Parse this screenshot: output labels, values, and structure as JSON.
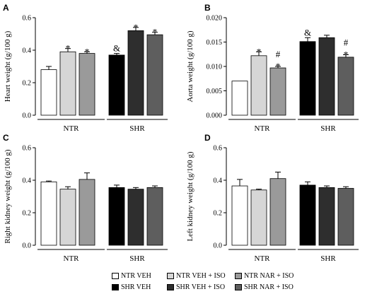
{
  "chart_data": [
    {
      "type": "bar",
      "panel": "A",
      "ylabel": "Heart weight (g/100 g)",
      "ylim": [
        0,
        0.6
      ],
      "yticks": [
        "0.0",
        "0.2",
        "0.4",
        "0.6"
      ],
      "group_labels": [
        "NTR",
        "SHR"
      ],
      "values": [
        0.28,
        0.39,
        0.38,
        0.37,
        0.52,
        0.495
      ],
      "errors": [
        0.02,
        0.02,
        0.01,
        0.01,
        0.02,
        0.015
      ],
      "annotations": [
        "",
        "*",
        "*",
        "&",
        "*",
        "*"
      ]
    },
    {
      "type": "bar",
      "panel": "B",
      "ylabel": "Aorta weight (g/100 g)",
      "ylim": [
        0,
        0.02
      ],
      "yticks": [
        "0.000",
        "0.005",
        "0.010",
        "0.015",
        "0.020"
      ],
      "group_labels": [
        "NTR",
        "SHR"
      ],
      "values": [
        0.007,
        0.0122,
        0.0097,
        0.0151,
        0.0159,
        0.0119
      ],
      "errors": [
        0.0,
        0.0008,
        0.0003,
        0.0008,
        0.0005,
        0.0005
      ],
      "annotations": [
        "",
        "*",
        "#\n*",
        "&",
        "",
        "#\n*"
      ]
    },
    {
      "type": "bar",
      "panel": "C",
      "ylabel": "Right kidney weight (g/100 g)",
      "ylim": [
        0,
        0.6
      ],
      "yticks": [
        "0.0",
        "0.2",
        "0.4",
        "0.6"
      ],
      "group_labels": [
        "NTR",
        "SHR"
      ],
      "values": [
        0.39,
        0.345,
        0.405,
        0.355,
        0.345,
        0.355
      ],
      "errors": [
        0.005,
        0.015,
        0.04,
        0.015,
        0.01,
        0.01
      ],
      "annotations": [
        "",
        "",
        "",
        "",
        "",
        ""
      ]
    },
    {
      "type": "bar",
      "panel": "D",
      "ylabel": "Left kidney weight (g/100 g)",
      "ylim": [
        0,
        0.6
      ],
      "yticks": [
        "0.0",
        "0.2",
        "0.4",
        "0.6"
      ],
      "group_labels": [
        "NTR",
        "SHR"
      ],
      "values": [
        0.365,
        0.34,
        0.41,
        0.37,
        0.355,
        0.35
      ],
      "errors": [
        0.04,
        0.005,
        0.04,
        0.02,
        0.01,
        0.01
      ],
      "annotations": [
        "",
        "",
        "",
        "",
        "",
        ""
      ]
    }
  ],
  "legend": [
    {
      "label": "NTR VEH",
      "color": "#ffffff"
    },
    {
      "label": "NTR VEH + ISO",
      "color": "#d6d6d6"
    },
    {
      "label": "NTR NAR + ISO",
      "color": "#9a9a9a"
    },
    {
      "label": "SHR VEH",
      "color": "#000000"
    },
    {
      "label": "SHR VEH + ISO",
      "color": "#2e2e2e"
    },
    {
      "label": "SHR NAR + ISO",
      "color": "#5e5e5e"
    }
  ],
  "bar_colors": [
    "#ffffff",
    "#d6d6d6",
    "#9a9a9a",
    "#000000",
    "#2e2e2e",
    "#5e5e5e"
  ]
}
